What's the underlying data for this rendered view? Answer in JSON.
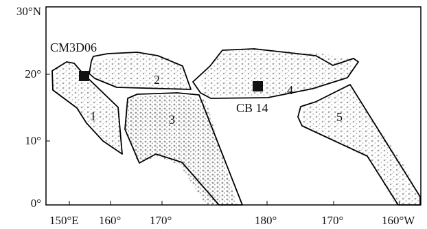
{
  "map": {
    "lat_labels": [
      "30°N",
      "20°",
      "10°",
      "0°"
    ],
    "lon_labels": [
      "150°E",
      "160°",
      "170°",
      "180°",
      "170°",
      "160°W"
    ],
    "regions": [
      "1",
      "2",
      "3",
      "4",
      "5"
    ],
    "sites": [
      {
        "name": "CM3D06",
        "lat": 19.5,
        "lon": 152.3
      },
      {
        "name": "CB 14",
        "lat": 17.9,
        "lon": 178.3
      }
    ],
    "colors": {
      "frame": "#000000",
      "seamount": "#9a9a9a",
      "site_marker": "#111111"
    }
  }
}
